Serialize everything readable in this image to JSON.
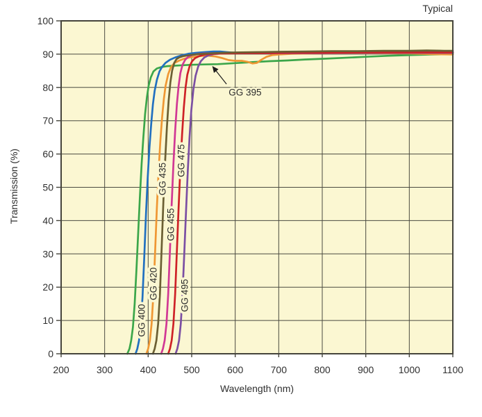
{
  "header": {
    "title": "Typical"
  },
  "chart_data": {
    "type": "line",
    "title": "Typical",
    "xlabel": "Wavelength (nm)",
    "ylabel": "Transmission (%)",
    "xlim": [
      200,
      1100
    ],
    "ylim": [
      0,
      100
    ],
    "x_ticks": [
      200,
      300,
      400,
      500,
      600,
      700,
      800,
      900,
      1000,
      1100
    ],
    "y_ticks": [
      0,
      10,
      20,
      30,
      40,
      50,
      60,
      70,
      80,
      90,
      100
    ],
    "grid": true,
    "legend_position": "inline-curve-labels",
    "plot_bg_color": "#FBF7D2",
    "grid_color": "#4A4A40",
    "border_color": "#45443B",
    "text_color": "#2F2F2F",
    "series": [
      {
        "name": "GG 395",
        "color": "#3BA64A",
        "points": [
          [
            352,
            0
          ],
          [
            357,
            1.5
          ],
          [
            361,
            4
          ],
          [
            365,
            8
          ],
          [
            369,
            15
          ],
          [
            373,
            25
          ],
          [
            377,
            36
          ],
          [
            381,
            47
          ],
          [
            385,
            57
          ],
          [
            389,
            65
          ],
          [
            393,
            72
          ],
          [
            397,
            77
          ],
          [
            401,
            80.5
          ],
          [
            406,
            83
          ],
          [
            412,
            84.8
          ],
          [
            420,
            85.7
          ],
          [
            430,
            86.1
          ],
          [
            445,
            86.4
          ],
          [
            470,
            86.6
          ],
          [
            500,
            86.8
          ],
          [
            530,
            86.9
          ],
          [
            560,
            87
          ],
          [
            600,
            87.3
          ],
          [
            640,
            87.6
          ],
          [
            680,
            87.9
          ],
          [
            720,
            88.1
          ],
          [
            760,
            88.4
          ],
          [
            800,
            88.6
          ],
          [
            850,
            88.9
          ],
          [
            900,
            89.2
          ],
          [
            950,
            89.5
          ],
          [
            1000,
            89.7
          ],
          [
            1050,
            89.9
          ],
          [
            1100,
            90
          ]
        ]
      },
      {
        "name": "GG 400",
        "color": "#2170C0",
        "points": [
          [
            371,
            0
          ],
          [
            375,
            1.5
          ],
          [
            379,
            4
          ],
          [
            383,
            9
          ],
          [
            387,
            17
          ],
          [
            391,
            29
          ],
          [
            395,
            42
          ],
          [
            399,
            53
          ],
          [
            403,
            62
          ],
          [
            407,
            69
          ],
          [
            411,
            75
          ],
          [
            415,
            79
          ],
          [
            420,
            82.3
          ],
          [
            426,
            84.8
          ],
          [
            432,
            86.2
          ],
          [
            440,
            87.4
          ],
          [
            450,
            88.3
          ],
          [
            462,
            89
          ],
          [
            476,
            89.6
          ],
          [
            492,
            90.1
          ],
          [
            510,
            90.4
          ],
          [
            530,
            90.6
          ],
          [
            550,
            90.8
          ],
          [
            565,
            90.8
          ],
          [
            580,
            90.6
          ],
          [
            600,
            90.4
          ],
          [
            630,
            90.3
          ],
          [
            660,
            90.4
          ],
          [
            700,
            90.4
          ],
          [
            750,
            90.5
          ],
          [
            800,
            90.5
          ],
          [
            900,
            90.5
          ],
          [
            1000,
            90.6
          ],
          [
            1100,
            90.6
          ]
        ]
      },
      {
        "name": "GG 420",
        "color": "#EF9733",
        "points": [
          [
            396,
            0
          ],
          [
            400,
            1.5
          ],
          [
            404,
            4
          ],
          [
            408,
            9
          ],
          [
            412,
            18
          ],
          [
            416,
            31
          ],
          [
            420,
            44
          ],
          [
            424,
            55
          ],
          [
            428,
            64
          ],
          [
            432,
            71
          ],
          [
            436,
            76.5
          ],
          [
            440,
            80.5
          ],
          [
            446,
            84
          ],
          [
            452,
            86
          ],
          [
            460,
            87.3
          ],
          [
            470,
            88
          ],
          [
            482,
            88.6
          ],
          [
            495,
            89
          ],
          [
            510,
            89.3
          ],
          [
            525,
            89.5
          ],
          [
            540,
            89.5
          ],
          [
            555,
            89.3
          ],
          [
            570,
            88.8
          ],
          [
            585,
            88.2
          ],
          [
            600,
            88
          ],
          [
            615,
            88
          ],
          [
            628,
            87.7
          ],
          [
            640,
            87.2
          ],
          [
            650,
            87.4
          ],
          [
            660,
            88.3
          ],
          [
            672,
            89.2
          ],
          [
            685,
            89.7
          ],
          [
            700,
            89.9
          ],
          [
            730,
            90.1
          ],
          [
            780,
            90.2
          ],
          [
            850,
            90.3
          ],
          [
            920,
            90.3
          ],
          [
            1000,
            90.2
          ],
          [
            1050,
            90
          ],
          [
            1100,
            89.9
          ]
        ]
      },
      {
        "name": "GG 455",
        "color": "#D13894",
        "points": [
          [
            430,
            0
          ],
          [
            434,
            1.5
          ],
          [
            438,
            4
          ],
          [
            442,
            9
          ],
          [
            446,
            18
          ],
          [
            450,
            31
          ],
          [
            454,
            45
          ],
          [
            458,
            57
          ],
          [
            462,
            67
          ],
          [
            466,
            75
          ],
          [
            470,
            80.5
          ],
          [
            474,
            84.3
          ],
          [
            479,
            86.8
          ],
          [
            485,
            88.3
          ],
          [
            492,
            89.2
          ],
          [
            500,
            89.7
          ],
          [
            512,
            90
          ],
          [
            530,
            90.2
          ],
          [
            560,
            90.3
          ],
          [
            600,
            90.3
          ],
          [
            650,
            90.4
          ],
          [
            700,
            90.4
          ],
          [
            800,
            90.4
          ],
          [
            900,
            90.4
          ],
          [
            1000,
            90.4
          ],
          [
            1100,
            90.4
          ]
        ]
      },
      {
        "name": "GG 495",
        "color": "#7B4FA3",
        "points": [
          [
            463,
            0
          ],
          [
            467,
            1.5
          ],
          [
            471,
            4
          ],
          [
            475,
            9
          ],
          [
            479,
            18
          ],
          [
            483,
            30
          ],
          [
            487,
            43
          ],
          [
            491,
            55
          ],
          [
            495,
            65
          ],
          [
            499,
            73
          ],
          [
            504,
            79.5
          ],
          [
            509,
            83.5
          ],
          [
            515,
            86.3
          ],
          [
            521,
            87.9
          ],
          [
            529,
            89
          ],
          [
            538,
            89.6
          ],
          [
            550,
            90
          ],
          [
            570,
            90.2
          ],
          [
            600,
            90.3
          ],
          [
            650,
            90.3
          ],
          [
            700,
            90.3
          ],
          [
            800,
            90.3
          ],
          [
            900,
            90.4
          ],
          [
            1000,
            90.4
          ],
          [
            1100,
            90.4
          ]
        ]
      },
      {
        "name": "GG 475",
        "color": "#CE2127",
        "points": [
          [
            446,
            0
          ],
          [
            450,
            1.5
          ],
          [
            454,
            4
          ],
          [
            458,
            9
          ],
          [
            462,
            18
          ],
          [
            466,
            31
          ],
          [
            470,
            44
          ],
          [
            474,
            56
          ],
          [
            478,
            66
          ],
          [
            482,
            74
          ],
          [
            486,
            80
          ],
          [
            490,
            83.8
          ],
          [
            495,
            86.3
          ],
          [
            501,
            87.9
          ],
          [
            508,
            88.8
          ],
          [
            517,
            89.4
          ],
          [
            530,
            89.9
          ],
          [
            548,
            90.1
          ],
          [
            575,
            90.2
          ],
          [
            610,
            90.3
          ],
          [
            660,
            90.3
          ],
          [
            720,
            90.4
          ],
          [
            800,
            90.4
          ],
          [
            900,
            90.5
          ],
          [
            1000,
            90.5
          ],
          [
            1100,
            90.5
          ]
        ]
      },
      {
        "name": "GG 435",
        "color": "#6B5F33",
        "points": [
          [
            411,
            0
          ],
          [
            415,
            1.5
          ],
          [
            419,
            4
          ],
          [
            423,
            9
          ],
          [
            427,
            18
          ],
          [
            431,
            32
          ],
          [
            435,
            46
          ],
          [
            439,
            58
          ],
          [
            443,
            68
          ],
          [
            447,
            76
          ],
          [
            451,
            81.5
          ],
          [
            455,
            85
          ],
          [
            460,
            87.4
          ],
          [
            465,
            88.5
          ],
          [
            471,
            89
          ],
          [
            480,
            89.4
          ],
          [
            495,
            89.7
          ],
          [
            515,
            90
          ],
          [
            540,
            90.2
          ],
          [
            570,
            90.4
          ],
          [
            600,
            90.5
          ],
          [
            650,
            90.6
          ],
          [
            700,
            90.7
          ],
          [
            760,
            90.8
          ],
          [
            820,
            90.9
          ],
          [
            880,
            90.9
          ],
          [
            940,
            91
          ],
          [
            1000,
            91
          ],
          [
            1040,
            91.1
          ],
          [
            1080,
            91
          ],
          [
            1100,
            91
          ]
        ]
      }
    ],
    "curve_labels": [
      {
        "text": "GG 400",
        "series": "GG 400",
        "x": 385,
        "y": 10,
        "rotation": -90
      },
      {
        "text": "GG 420",
        "series": "GG 420",
        "x": 412,
        "y": 21,
        "rotation": -90
      },
      {
        "text": "GG 435",
        "series": "GG 435",
        "x": 433,
        "y": 52.5,
        "rotation": -90
      },
      {
        "text": "GG 455",
        "series": "GG 455",
        "x": 452,
        "y": 38.8,
        "rotation": -90
      },
      {
        "text": "GG 475",
        "series": "GG 475",
        "x": 476,
        "y": 58,
        "rotation": -90
      },
      {
        "text": "GG 495",
        "series": "GG 495",
        "x": 484,
        "y": 17.5,
        "rotation": -90
      }
    ],
    "annotation": {
      "text": "GG 395",
      "series": "GG 395",
      "text_x": 585,
      "text_y": 78.5,
      "arrow_from_x": 580,
      "arrow_from_y": 81,
      "arrow_to_x": 548,
      "arrow_to_y": 86.3
    }
  }
}
